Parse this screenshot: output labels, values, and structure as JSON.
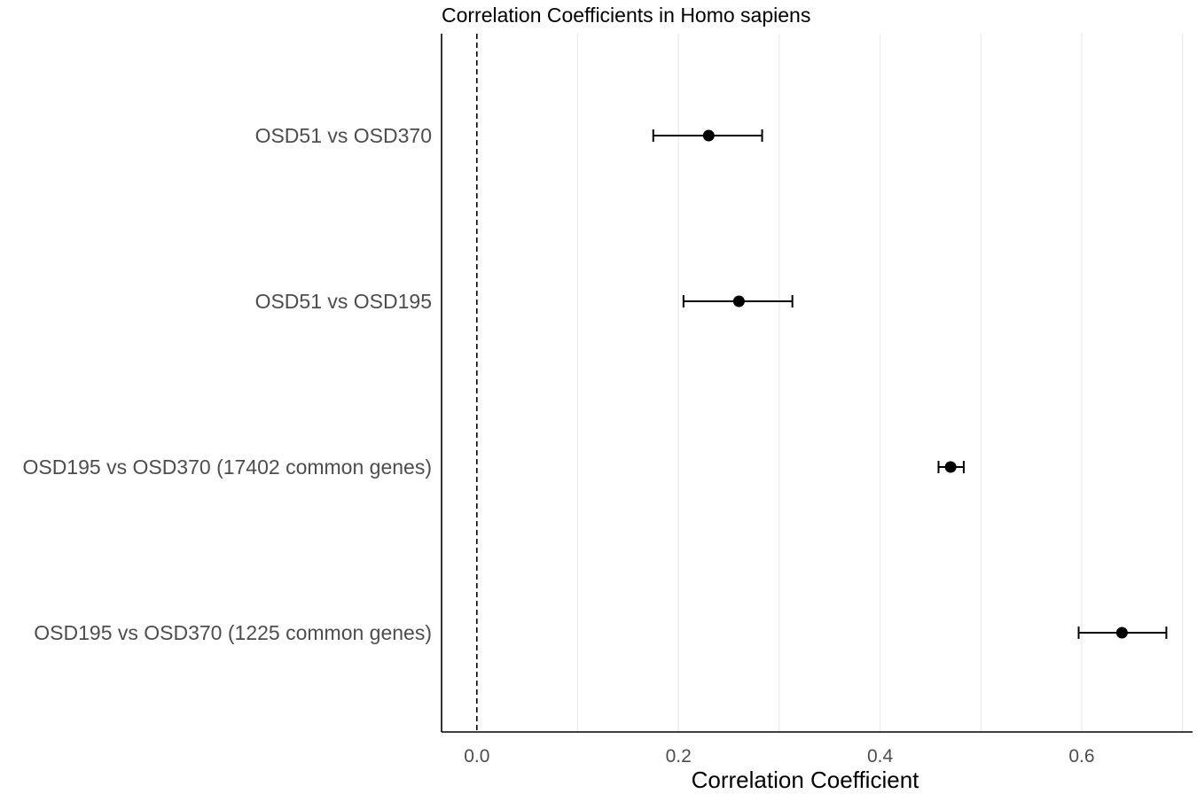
{
  "chart_data": {
    "type": "scatter",
    "subtype": "forest-plot",
    "title": "Correlation Coefficients in Homo sapiens",
    "xlabel": "Correlation Coefficient",
    "ylabel": "",
    "xlim": [
      -0.035,
      0.71
    ],
    "xticks": [
      0.0,
      0.2,
      0.4,
      0.6
    ],
    "xtick_labels": [
      "0.0",
      "0.2",
      "0.4",
      "0.6"
    ],
    "reference_line": {
      "x": 0.0,
      "style": "dashed"
    },
    "grid": {
      "vertical": true,
      "horizontal": false
    },
    "categories": [
      "OSD51 vs OSD370",
      "OSD51 vs OSD195",
      "OSD195 vs OSD370 (17402 common genes)",
      "OSD195 vs OSD370 (1225 common genes)"
    ],
    "estimates": [
      0.23,
      0.26,
      0.47,
      0.64
    ],
    "ci_lower": [
      0.175,
      0.205,
      0.458,
      0.597
    ],
    "ci_upper": [
      0.283,
      0.313,
      0.483,
      0.684
    ],
    "colors": {
      "point": "#000000",
      "error_bar": "#000000",
      "grid": "#ebebeb",
      "axis": "#000000"
    }
  }
}
